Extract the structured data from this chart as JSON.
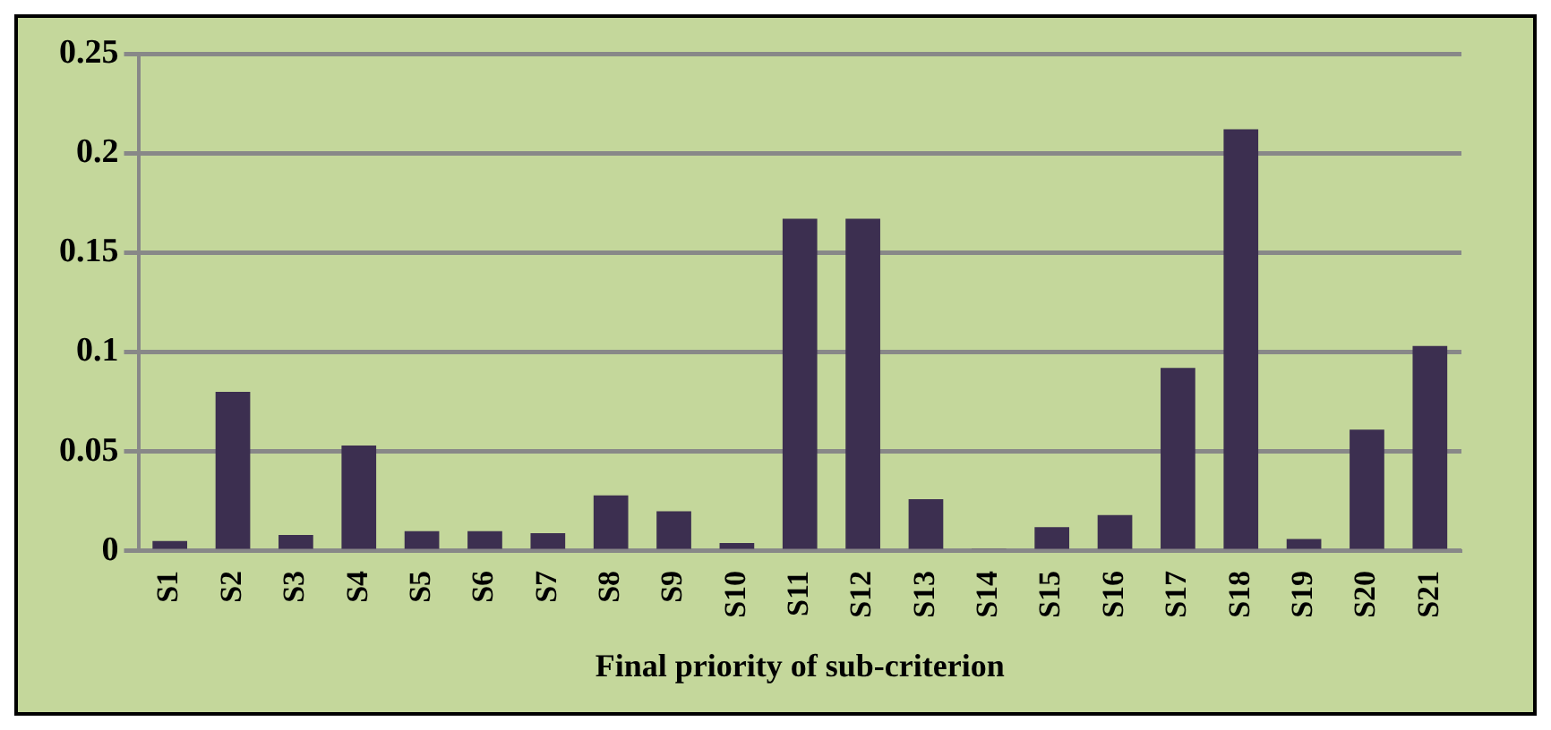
{
  "chart_data": {
    "type": "bar",
    "xlabel": "Final priority of sub-criterion",
    "categories": [
      "S1",
      "S2",
      "S3",
      "S4",
      "S5",
      "S6",
      "S7",
      "S8",
      "S9",
      "S10",
      "S11",
      "S12",
      "S13",
      "S14",
      "S15",
      "S16",
      "S17",
      "S18",
      "S19",
      "S20",
      "S21"
    ],
    "values": [
      0.005,
      0.08,
      0.008,
      0.053,
      0.01,
      0.01,
      0.009,
      0.028,
      0.02,
      0.004,
      0.167,
      0.167,
      0.026,
      0.001,
      0.012,
      0.018,
      0.092,
      0.212,
      0.006,
      0.061,
      0.103
    ],
    "color": "#3c2f50",
    "ylim": [
      0,
      0.25
    ],
    "yticks": [
      0,
      0.05,
      0.1,
      0.15,
      0.2,
      0.25
    ],
    "grid": "y"
  }
}
